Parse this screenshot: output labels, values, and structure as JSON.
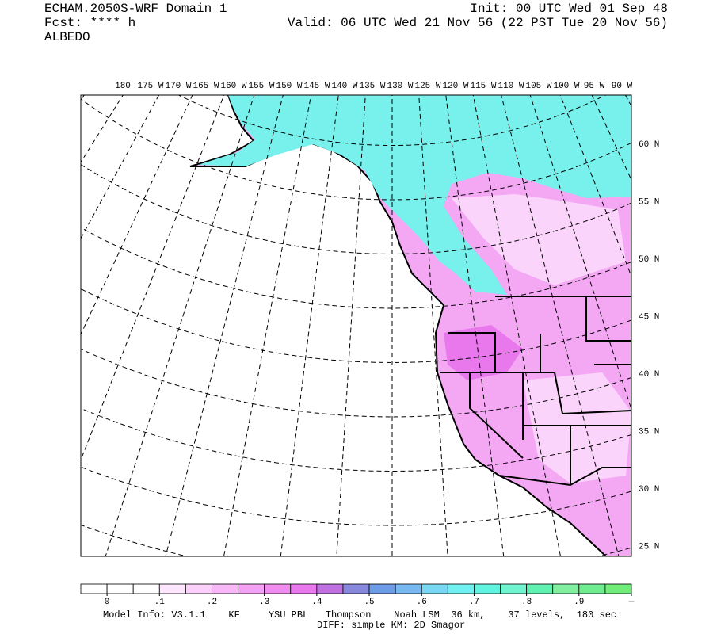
{
  "header": {
    "left": [
      "ECHAM.2050S-WRF Domain 1",
      "Fcst: **** h",
      "ALBEDO"
    ],
    "right": [
      "Init: 00 UTC Wed 01 Sep 48",
      "Valid: 06 UTC Wed 21 Nov 56 (22 PST Tue 20 Nov 56)"
    ]
  },
  "map": {
    "lon_labels": [
      "180",
      "175 W",
      "170 W",
      "165 W",
      "160 W",
      "155 W",
      "150 W",
      "145 W",
      "140 W",
      "135 W",
      "130 W",
      "125 W",
      "120 W",
      "115 W",
      "110 W",
      "105 W",
      "100 W",
      "95 W",
      "90 W"
    ],
    "lat_labels": [
      "60 N",
      "55 N",
      "50 N",
      "45 N",
      "40 N",
      "35 N",
      "30 N",
      "25 N"
    ]
  },
  "colorbar": {
    "colors": [
      "#ffffff",
      "#ffffff",
      "#ffffff",
      "#fde6fd",
      "#fbd0fb",
      "#f8b8f8",
      "#f4a0f4",
      "#f08cf0",
      "#e878ec",
      "#c070e0",
      "#8888dc",
      "#6c9ce8",
      "#78b8f0",
      "#78d8f4",
      "#70f0f0",
      "#60f4e0",
      "#70f4d0",
      "#60f0b0",
      "#80f0a0",
      "#70ec90",
      "#70ec78"
    ],
    "ticks": [
      {
        "value": 0,
        "label": "0"
      },
      {
        "value": 0.1,
        "label": ".1"
      },
      {
        "value": 0.2,
        "label": ".2"
      },
      {
        "value": 0.3,
        "label": ".3"
      },
      {
        "value": 0.4,
        "label": ".4"
      },
      {
        "value": 0.5,
        "label": ".5"
      },
      {
        "value": 0.6,
        "label": ".6"
      },
      {
        "value": 0.7,
        "label": ".7"
      },
      {
        "value": 0.8,
        "label": ".8"
      },
      {
        "value": 0.9,
        "label": ".9"
      },
      {
        "value": 1,
        "label": "—"
      }
    ]
  },
  "footer": [
    "Model Info: V3.1.1    KF     YSU PBL   Thompson    Noah LSM  36 km,    37 levels,  180 sec",
    "DIFF: simple KM: 2D Smagor"
  ]
}
